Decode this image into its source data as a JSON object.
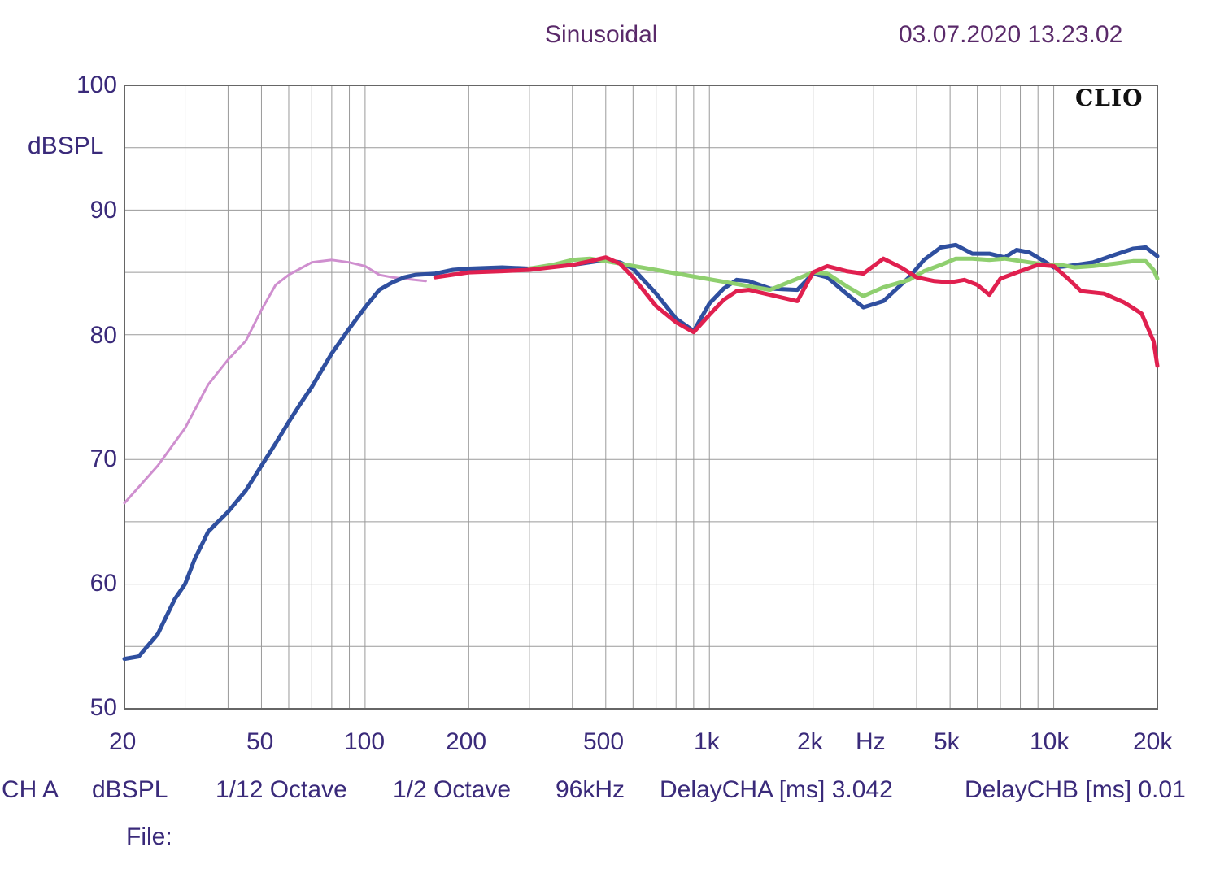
{
  "header": {
    "title": "Sinusoidal",
    "timestamp": "03.07.2020 13.23.02"
  },
  "brand": "CLIO",
  "footer": {
    "channel": "CH A",
    "unit": "dBSPL",
    "smoothing": "1/12 Octave",
    "resolution": "1/2 Octave",
    "rate": "96kHz",
    "delay_a": "DelayCHA [ms] 3.042",
    "delay_b": "DelayCHB [ms] 0.01"
  },
  "file_label": "File:",
  "colors": {
    "grid": "#9a9a9a",
    "frame": "#666666",
    "blue": "#2f4f9f",
    "red": "#e0204f",
    "green": "#8fcf6f",
    "pink": "#cf8fcf"
  },
  "chart_data": {
    "type": "line",
    "xscale": "log",
    "xlim": [
      20,
      20000
    ],
    "ylim": [
      50,
      100
    ],
    "ylabel": "dBSPL",
    "xlabel": "Hz",
    "grid": true,
    "y_ticks": [
      "100",
      "90",
      "80",
      "70",
      "60",
      "50"
    ],
    "x_ticks": [
      {
        "label": "20",
        "value": 20
      },
      {
        "label": "50",
        "value": 50
      },
      {
        "label": "100",
        "value": 100
      },
      {
        "label": "200",
        "value": 200
      },
      {
        "label": "500",
        "value": 500
      },
      {
        "label": "1k",
        "value": 1000
      },
      {
        "label": "2k",
        "value": 2000
      },
      {
        "label": "5k",
        "value": 5000
      },
      {
        "label": "10k",
        "value": 10000
      },
      {
        "label": "20k",
        "value": 20000
      }
    ],
    "series": [
      {
        "color": "#cf8fcf",
        "width": 3,
        "points": [
          [
            20,
            66.5
          ],
          [
            25,
            69.5
          ],
          [
            30,
            72.5
          ],
          [
            35,
            76
          ],
          [
            40,
            78
          ],
          [
            45,
            79.5
          ],
          [
            50,
            82
          ],
          [
            55,
            84
          ],
          [
            60,
            84.8
          ],
          [
            70,
            85.8
          ],
          [
            80,
            86
          ],
          [
            90,
            85.8
          ],
          [
            100,
            85.5
          ],
          [
            110,
            84.8
          ],
          [
            120,
            84.6
          ],
          [
            150,
            84.3
          ]
        ]
      },
      {
        "color": "#2f4f9f",
        "width": 5,
        "points": [
          [
            20,
            54
          ],
          [
            22,
            54.2
          ],
          [
            25,
            56
          ],
          [
            28,
            58.8
          ],
          [
            30,
            60
          ],
          [
            32,
            62
          ],
          [
            35,
            64.2
          ],
          [
            40,
            65.8
          ],
          [
            45,
            67.5
          ],
          [
            50,
            69.5
          ],
          [
            55,
            71.3
          ],
          [
            60,
            73
          ],
          [
            65,
            74.5
          ],
          [
            70,
            75.8
          ],
          [
            75,
            77.2
          ],
          [
            80,
            78.5
          ],
          [
            90,
            80.5
          ],
          [
            100,
            82.2
          ],
          [
            110,
            83.6
          ],
          [
            120,
            84.2
          ],
          [
            130,
            84.6
          ],
          [
            140,
            84.8
          ],
          [
            160,
            84.9
          ],
          [
            180,
            85.2
          ],
          [
            200,
            85.3
          ],
          [
            250,
            85.4
          ],
          [
            300,
            85.3
          ],
          [
            400,
            85.6
          ],
          [
            500,
            86
          ],
          [
            550,
            85.8
          ],
          [
            600,
            85.3
          ],
          [
            700,
            83.3
          ],
          [
            800,
            81.3
          ],
          [
            900,
            80.3
          ],
          [
            1000,
            82.5
          ],
          [
            1100,
            83.7
          ],
          [
            1200,
            84.4
          ],
          [
            1300,
            84.3
          ],
          [
            1500,
            83.7
          ],
          [
            1800,
            83.6
          ],
          [
            2000,
            84.9
          ],
          [
            2200,
            84.6
          ],
          [
            2500,
            83.3
          ],
          [
            2800,
            82.2
          ],
          [
            3200,
            82.7
          ],
          [
            3800,
            84.6
          ],
          [
            4200,
            86
          ],
          [
            4700,
            87
          ],
          [
            5200,
            87.2
          ],
          [
            5800,
            86.5
          ],
          [
            6500,
            86.5
          ],
          [
            7200,
            86.2
          ],
          [
            7800,
            86.8
          ],
          [
            8500,
            86.6
          ],
          [
            9500,
            85.8
          ],
          [
            10000,
            85.4
          ],
          [
            11000,
            85.5
          ],
          [
            13000,
            85.8
          ],
          [
            15000,
            86.4
          ],
          [
            17000,
            86.9
          ],
          [
            18500,
            87
          ],
          [
            20000,
            86.3
          ]
        ]
      },
      {
        "color": "#8fcf6f",
        "width": 5,
        "points": [
          [
            300,
            85.3
          ],
          [
            350,
            85.6
          ],
          [
            400,
            86
          ],
          [
            450,
            86.1
          ],
          [
            500,
            85.9
          ],
          [
            1500,
            83.6
          ],
          [
            2000,
            85
          ],
          [
            2200,
            84.9
          ],
          [
            2500,
            83.9
          ],
          [
            2800,
            83.1
          ],
          [
            3200,
            83.8
          ],
          [
            3800,
            84.4
          ],
          [
            4200,
            85.1
          ],
          [
            4700,
            85.6
          ],
          [
            5200,
            86.1
          ],
          [
            5800,
            86.1
          ],
          [
            6500,
            86
          ],
          [
            7200,
            86.1
          ],
          [
            8500,
            85.8
          ],
          [
            9500,
            85.6
          ],
          [
            10500,
            85.6
          ],
          [
            11500,
            85.4
          ],
          [
            13000,
            85.5
          ],
          [
            15000,
            85.7
          ],
          [
            17000,
            85.9
          ],
          [
            18500,
            85.9
          ],
          [
            19500,
            85.2
          ],
          [
            20000,
            84.5
          ]
        ]
      },
      {
        "color": "#e0204f",
        "width": 5,
        "points": [
          [
            160,
            84.6
          ],
          [
            200,
            85
          ],
          [
            250,
            85.1
          ],
          [
            300,
            85.2
          ],
          [
            400,
            85.6
          ],
          [
            450,
            85.9
          ],
          [
            500,
            86.2
          ],
          [
            550,
            85.7
          ],
          [
            600,
            84.6
          ],
          [
            700,
            82.3
          ],
          [
            800,
            81
          ],
          [
            900,
            80.2
          ],
          [
            1000,
            81.6
          ],
          [
            1100,
            82.8
          ],
          [
            1200,
            83.5
          ],
          [
            1300,
            83.6
          ],
          [
            1500,
            83.2
          ],
          [
            1800,
            82.7
          ],
          [
            2000,
            85
          ],
          [
            2200,
            85.5
          ],
          [
            2500,
            85.1
          ],
          [
            2800,
            84.9
          ],
          [
            3200,
            86.1
          ],
          [
            3600,
            85.4
          ],
          [
            4000,
            84.6
          ],
          [
            4500,
            84.3
          ],
          [
            5000,
            84.2
          ],
          [
            5500,
            84.4
          ],
          [
            6000,
            84
          ],
          [
            6500,
            83.2
          ],
          [
            7000,
            84.5
          ],
          [
            8000,
            85.1
          ],
          [
            9000,
            85.6
          ],
          [
            10000,
            85.5
          ],
          [
            11000,
            84.5
          ],
          [
            12000,
            83.5
          ],
          [
            14000,
            83.3
          ],
          [
            16000,
            82.6
          ],
          [
            18000,
            81.7
          ],
          [
            19500,
            79.5
          ],
          [
            20000,
            77.5
          ]
        ]
      }
    ]
  }
}
